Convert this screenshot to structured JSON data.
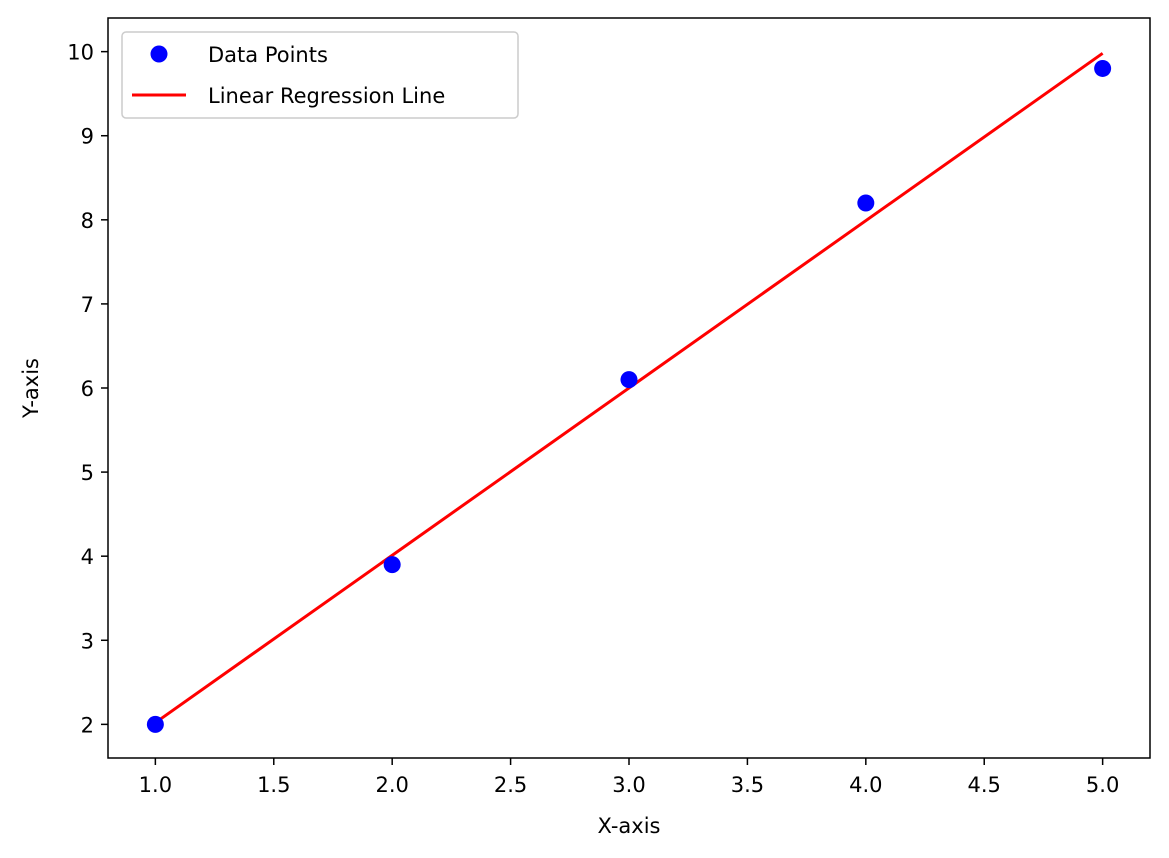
{
  "chart_data": {
    "type": "scatter",
    "title": "",
    "xlabel": "X-axis",
    "ylabel": "Y-axis",
    "xlim": [
      0.8,
      5.2
    ],
    "ylim": [
      1.6,
      10.4
    ],
    "x_ticks": [
      1.0,
      1.5,
      2.0,
      2.5,
      3.0,
      3.5,
      4.0,
      4.5,
      5.0
    ],
    "x_tick_labels": [
      "1.0",
      "1.5",
      "2.0",
      "2.5",
      "3.0",
      "3.5",
      "4.0",
      "4.5",
      "5.0"
    ],
    "y_ticks": [
      2,
      3,
      4,
      5,
      6,
      7,
      8,
      9,
      10
    ],
    "y_tick_labels": [
      "2",
      "3",
      "4",
      "5",
      "6",
      "7",
      "8",
      "9",
      "10"
    ],
    "grid": false,
    "legend_position": "top-left",
    "series": [
      {
        "name": "Data Points",
        "kind": "scatter",
        "color": "#0000ff",
        "x": [
          1,
          2,
          3,
          4,
          5
        ],
        "y": [
          2.0,
          3.9,
          6.1,
          8.2,
          9.8
        ]
      },
      {
        "name": "Linear Regression Line",
        "kind": "line",
        "color": "#ff0000",
        "x": [
          1,
          5
        ],
        "y": [
          2.02,
          9.98
        ]
      }
    ]
  }
}
